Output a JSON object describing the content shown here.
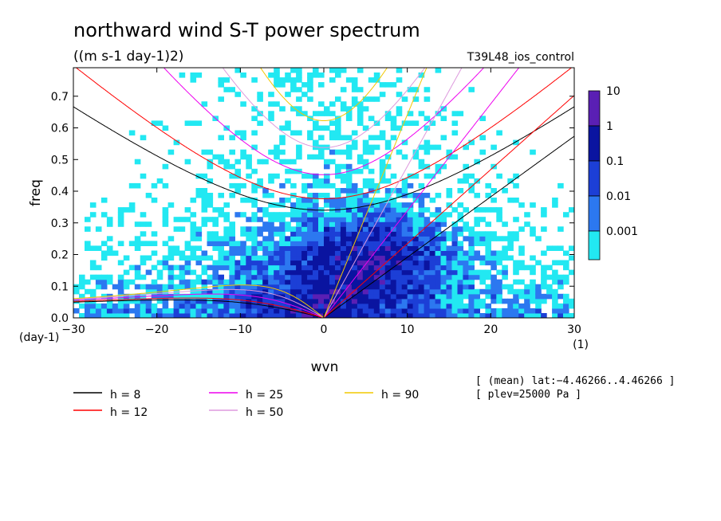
{
  "chart_data": {
    "type": "heatmap",
    "title": "northward wind S-T power spectrum",
    "subtitle": "((m s-1 day-1)2)",
    "run_label": "T39L48_ios_control",
    "xlabel": "wvn",
    "ylabel": "freq",
    "x_unit": "(1)",
    "y_unit": "(day-1)",
    "xlim": [
      -30,
      30
    ],
    "ylim": [
      0,
      0.79
    ],
    "x_ticks": [
      -30,
      -20,
      -10,
      0,
      10,
      20,
      30
    ],
    "x_tick_labels": [
      "−30",
      "−20",
      "−10",
      "0",
      "10",
      "20",
      "30"
    ],
    "y_ticks": [
      0.0,
      0.1,
      0.2,
      0.3,
      0.4,
      0.5,
      0.6,
      0.7
    ],
    "y_tick_labels": [
      "0.0",
      "0.1",
      "0.2",
      "0.3",
      "0.4",
      "0.5",
      "0.6",
      "0.7"
    ],
    "colorbar": {
      "levels": [
        "10",
        "1",
        "0.1",
        "0.01",
        "0.001"
      ],
      "colors": [
        "#5a1fb4",
        "#0a14a0",
        "#1c3fd6",
        "#2c78f0",
        "#22e8f2"
      ]
    },
    "dispersion_curves": [
      {
        "label": "h =  8",
        "h": 8,
        "color": "#000000"
      },
      {
        "label": "h = 12",
        "h": 12,
        "color": "#ff0000"
      },
      {
        "label": "h = 25",
        "h": 25,
        "color": "#ee00ee"
      },
      {
        "label": "h = 50",
        "h": 50,
        "color": "#dd99dd"
      },
      {
        "label": "h = 90",
        "h": 90,
        "color": "#f2c800"
      }
    ],
    "meta_lines": [
      "[ (mean) lat:−4.46266..4.46266 ]",
      "[ plev=25000 Pa ]"
    ]
  }
}
